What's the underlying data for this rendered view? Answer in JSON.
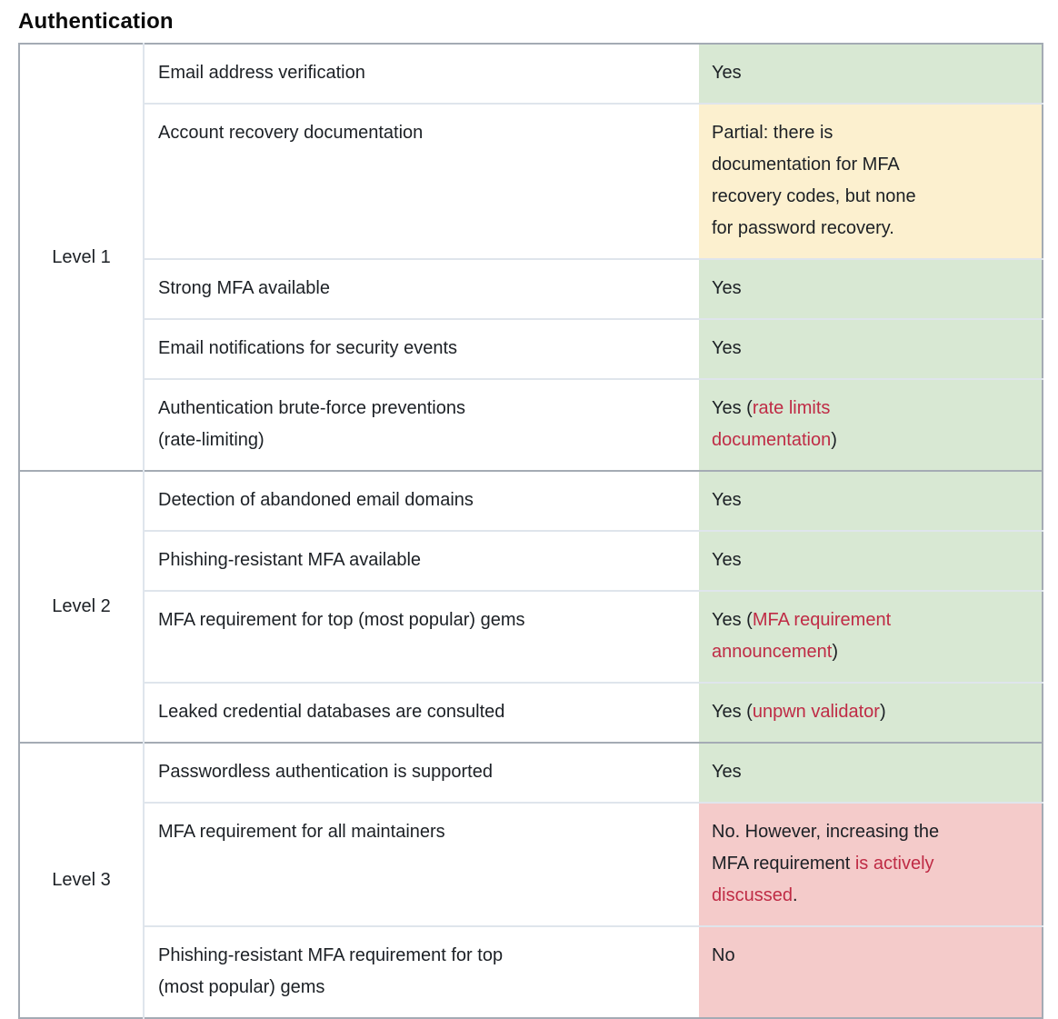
{
  "title": "Authentication",
  "colors": {
    "green": "#d8e8d3",
    "yellow": "#fcf0cf",
    "red": "#f4cbca",
    "link": "#bf2b45",
    "text": "#1c2025",
    "outer_border": "#a4abb4",
    "row_border": "#dfe5ec"
  },
  "sections": [
    {
      "level": "Level 1",
      "rows": [
        {
          "criterion": "Email address verification",
          "status": {
            "bg": "green",
            "segments": [
              {
                "text": "Yes"
              }
            ]
          }
        },
        {
          "criterion": "Account recovery documentation",
          "status": {
            "bg": "yellow",
            "segments": [
              {
                "text": "Partial: there is\ndocumentation for MFA\nrecovery codes, but none\nfor password recovery."
              }
            ]
          }
        },
        {
          "criterion": "Strong MFA available",
          "status": {
            "bg": "green",
            "segments": [
              {
                "text": "Yes"
              }
            ]
          }
        },
        {
          "criterion": "Email notifications for security events",
          "status": {
            "bg": "green",
            "segments": [
              {
                "text": "Yes"
              }
            ]
          }
        },
        {
          "criterion": "Authentication brute-force preventions\n(rate-limiting)",
          "status": {
            "bg": "green",
            "segments": [
              {
                "text": "Yes ("
              },
              {
                "text": "rate limits\ndocumentation",
                "link": true
              },
              {
                "text": ")"
              }
            ]
          }
        }
      ]
    },
    {
      "level": "Level 2",
      "rows": [
        {
          "criterion": "Detection of abandoned email domains",
          "status": {
            "bg": "green",
            "segments": [
              {
                "text": "Yes"
              }
            ]
          }
        },
        {
          "criterion": "Phishing-resistant MFA available",
          "status": {
            "bg": "green",
            "segments": [
              {
                "text": "Yes"
              }
            ]
          }
        },
        {
          "criterion": "MFA requirement for top (most popular) gems",
          "status": {
            "bg": "green",
            "segments": [
              {
                "text": "Yes ("
              },
              {
                "text": "MFA requirement\nannouncement",
                "link": true
              },
              {
                "text": ")"
              }
            ]
          }
        },
        {
          "criterion": "Leaked credential databases are consulted",
          "status": {
            "bg": "green",
            "segments": [
              {
                "text": "Yes ("
              },
              {
                "text": "unpwn validator",
                "link": true
              },
              {
                "text": ")"
              }
            ]
          }
        }
      ]
    },
    {
      "level": "Level 3",
      "rows": [
        {
          "criterion": "Passwordless authentication is supported",
          "status": {
            "bg": "green",
            "segments": [
              {
                "text": "Yes"
              }
            ]
          }
        },
        {
          "criterion": "MFA requirement for all maintainers",
          "status": {
            "bg": "red",
            "segments": [
              {
                "text": "No. However, increasing the\nMFA requirement "
              },
              {
                "text": "is actively\ndiscussed",
                "link": true
              },
              {
                "text": "."
              }
            ]
          }
        },
        {
          "criterion": "Phishing-resistant MFA requirement for top\n(most popular) gems",
          "status": {
            "bg": "red",
            "segments": [
              {
                "text": "No"
              }
            ]
          }
        }
      ]
    }
  ]
}
